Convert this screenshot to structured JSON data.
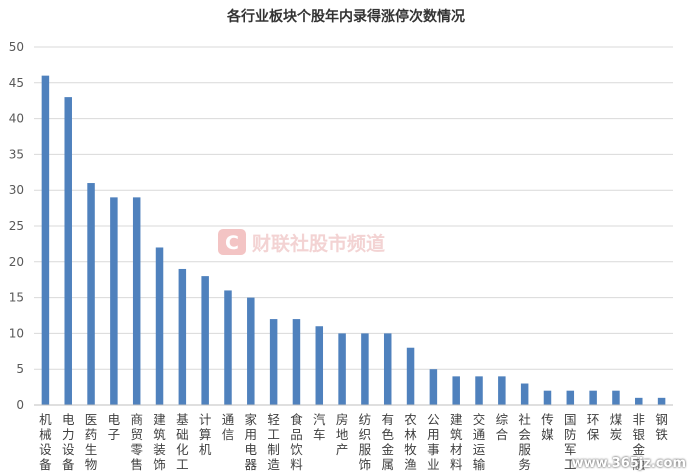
{
  "chart_data": {
    "type": "bar",
    "title": "各行业板块个股年内录得涨停次数情况",
    "categories": [
      "机械设备",
      "电力设备",
      "医药生物",
      "电子",
      "商贸零售",
      "建筑装饰",
      "基础化工",
      "计算机",
      "通信",
      "家用电器",
      "轻工制造",
      "食品饮料",
      "汽车",
      "房地产",
      "纺织服饰",
      "有色金属",
      "农林牧渔",
      "公用事业",
      "建筑材料",
      "交通运输",
      "综合",
      "社会服务",
      "传媒",
      "国防军工",
      "环保",
      "煤炭",
      "非银金融",
      "钢铁"
    ],
    "values": [
      46,
      43,
      31,
      29,
      29,
      22,
      19,
      18,
      16,
      15,
      12,
      12,
      11,
      10,
      10,
      10,
      8,
      5,
      4,
      4,
      4,
      3,
      2,
      2,
      2,
      2,
      1,
      1
    ],
    "ylim": [
      0,
      50
    ],
    "yticks": [
      0,
      5,
      10,
      15,
      20,
      25,
      30,
      35,
      40,
      45,
      50
    ],
    "grid": true,
    "bar_color": "#4f81bd"
  },
  "watermark": {
    "logo_letter": "C",
    "text": "财联社股市频道",
    "corner": "www.365jz.com",
    "logo_color": "#f3c4c4"
  }
}
